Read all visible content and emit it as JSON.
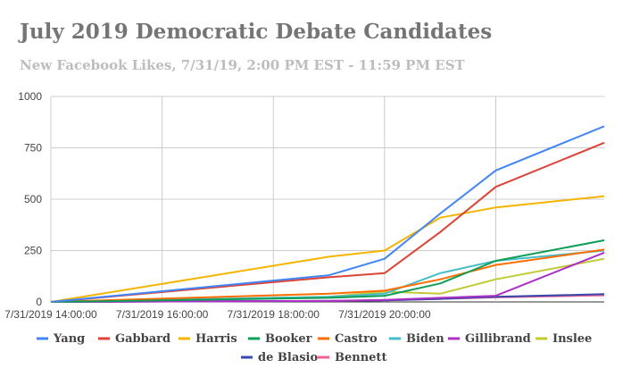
{
  "chart_data": {
    "type": "line",
    "title": "July 2019 Democratic Debate Candidates",
    "subtitle": "New Facebook Likes, 7/31/19, 2:00 PM EST - 11:59 PM EST",
    "xlabel": "",
    "ylabel": "",
    "x_ticks": [
      "7/31/2019 14:00:00",
      "7/31/2019 16:00:00",
      "7/31/2019 18:00:00",
      "7/31/2019 20:00:00"
    ],
    "y_ticks": [
      0,
      250,
      500,
      750,
      1000
    ],
    "ylim": [
      0,
      1000
    ],
    "xlim": [
      14,
      23.95
    ],
    "grid": true,
    "legend_position": "bottom",
    "x": [
      14,
      19,
      20,
      21,
      22,
      23.95
    ],
    "series": [
      {
        "name": "Yang",
        "color": "#4285f4",
        "values": [
          0,
          130,
          210,
          430,
          640,
          855
        ]
      },
      {
        "name": "Gabbard",
        "color": "#db4437",
        "values": [
          0,
          120,
          140,
          340,
          560,
          775
        ]
      },
      {
        "name": "Harris",
        "color": "#f4b400",
        "values": [
          0,
          220,
          250,
          410,
          460,
          515
        ]
      },
      {
        "name": "Booker",
        "color": "#0f9d58",
        "values": [
          0,
          20,
          30,
          90,
          200,
          300
        ]
      },
      {
        "name": "Castro",
        "color": "#ff6d00",
        "values": [
          0,
          40,
          55,
          110,
          180,
          255
        ]
      },
      {
        "name": "Biden",
        "color": "#46bdc6",
        "values": [
          0,
          25,
          40,
          140,
          200,
          250
        ]
      },
      {
        "name": "Gillibrand",
        "color": "#ab30c4",
        "values": [
          0,
          5,
          10,
          20,
          30,
          240
        ]
      },
      {
        "name": "Inslee",
        "color": "#c0ca33",
        "values": [
          0,
          25,
          50,
          40,
          110,
          210
        ]
      },
      {
        "name": "de Blasio",
        "color": "#3949ab",
        "values": [
          0,
          5,
          8,
          15,
          25,
          38
        ]
      },
      {
        "name": "Bennett",
        "color": "#f06292",
        "values": [
          0,
          5,
          8,
          15,
          22,
          32
        ]
      }
    ]
  }
}
